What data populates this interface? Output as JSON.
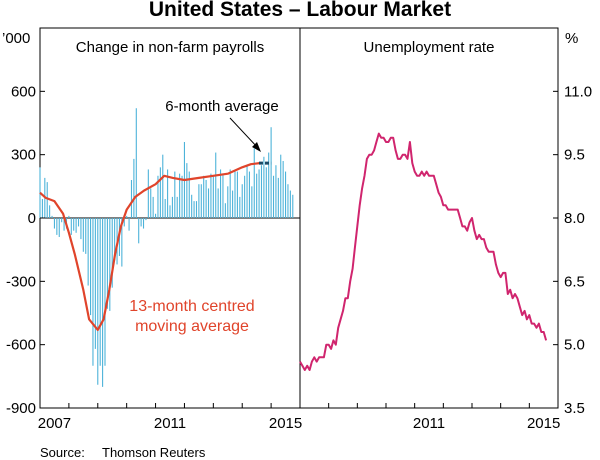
{
  "title": "United States – Labour Market",
  "source_label": "Source:",
  "source_value": "Thomson Reuters",
  "chart_data": [
    {
      "type": "bar",
      "title": "Change in non-farm payrolls",
      "ylabel": "’000",
      "ylim": [
        -900,
        900
      ],
      "yticks": [
        "600",
        "300",
        "0",
        "-300",
        "-600",
        "-900"
      ],
      "xticks": [
        "2007",
        "2011",
        "2015"
      ],
      "xlim": [
        2007.0,
        2016.0
      ],
      "annotations": {
        "six_month": "6-month average",
        "moving_avg": [
          "13-month centred",
          "moving average"
        ]
      },
      "colors": {
        "bars": "#4db3d9",
        "moving_average": "#e0442b",
        "six_month_marker": "#1a4a66"
      },
      "six_month_average": {
        "x": [
          2014.58,
          2015.0
        ],
        "value": 260
      },
      "bars": {
        "x_start": 2007.0,
        "step": 0.0833333,
        "values": [
          240,
          90,
          190,
          170,
          60,
          10,
          -50,
          -80,
          -90,
          -20,
          -60,
          -50,
          10,
          -80,
          -60,
          -70,
          -40,
          -100,
          -160,
          -170,
          -320,
          -460,
          -700,
          -620,
          -790,
          -700,
          -800,
          -700,
          -430,
          -440,
          -330,
          -200,
          -220,
          -180,
          -230,
          -40,
          10,
          -60,
          180,
          280,
          520,
          -120,
          -40,
          -50,
          -10,
          230,
          140,
          100,
          20,
          200,
          240,
          300,
          90,
          230,
          60,
          100,
          220,
          100,
          210,
          200,
          360,
          260,
          220,
          110,
          80,
          80,
          160,
          160,
          200,
          180,
          140,
          210,
          200,
          310,
          140,
          230,
          210,
          70,
          150,
          230,
          130,
          220,
          220,
          100,
          160,
          200,
          250,
          220,
          150,
          330,
          210,
          230,
          250,
          290,
          240,
          310,
          430,
          200,
          250,
          190,
          300,
          270,
          220,
          160,
          130,
          110
        ]
      },
      "moving_average": {
        "x": [
          2007.0,
          2007.2,
          2007.5,
          2007.8,
          2008.0,
          2008.2,
          2008.5,
          2008.7,
          2009.0,
          2009.2,
          2009.4,
          2009.6,
          2009.8,
          2010.0,
          2010.3,
          2010.6,
          2011.0,
          2011.3,
          2011.6,
          2012.0,
          2012.5,
          2013.0,
          2013.5,
          2014.0,
          2014.3,
          2014.6
        ],
        "values": [
          120,
          95,
          80,
          20,
          -70,
          -170,
          -340,
          -480,
          -530,
          -480,
          -340,
          -170,
          -40,
          40,
          100,
          130,
          160,
          200,
          190,
          180,
          190,
          200,
          210,
          240,
          255,
          260
        ]
      }
    },
    {
      "type": "line",
      "title": "Unemployment rate",
      "ylabel": "%",
      "ylim": [
        3.5,
        12.5
      ],
      "yticks": [
        "11.0",
        "9.5",
        "8.0",
        "6.5",
        "5.0",
        "3.5"
      ],
      "xticks": [
        "2011",
        "2015"
      ],
      "xlim": [
        2007.0,
        2016.0
      ],
      "colors": {
        "line": "#d0256e"
      },
      "series": [
        {
          "x_start": 2007.0,
          "step": 0.0833333,
          "values": [
            4.6,
            4.5,
            4.4,
            4.5,
            4.4,
            4.6,
            4.7,
            4.6,
            4.7,
            4.7,
            4.7,
            5.0,
            5.0,
            4.9,
            5.1,
            5.0,
            5.4,
            5.6,
            5.8,
            6.1,
            6.1,
            6.5,
            6.8,
            7.3,
            7.8,
            8.3,
            8.7,
            9.0,
            9.4,
            9.5,
            9.5,
            9.6,
            9.8,
            10.0,
            9.9,
            9.9,
            9.8,
            9.8,
            9.9,
            9.9,
            9.6,
            9.4,
            9.4,
            9.5,
            9.5,
            9.4,
            9.8,
            9.3,
            9.1,
            9.0,
            9.0,
            9.1,
            9.0,
            9.1,
            9.0,
            9.0,
            9.0,
            8.8,
            8.6,
            8.5,
            8.3,
            8.3,
            8.2,
            8.2,
            8.2,
            8.2,
            8.2,
            8.0,
            7.8,
            7.8,
            7.7,
            7.9,
            8.0,
            7.7,
            7.5,
            7.6,
            7.5,
            7.5,
            7.3,
            7.2,
            7.2,
            7.2,
            6.9,
            6.7,
            6.6,
            6.7,
            6.7,
            6.2,
            6.3,
            6.1,
            6.2,
            6.1,
            5.9,
            5.7,
            5.8,
            5.6,
            5.7,
            5.5,
            5.5,
            5.4,
            5.5,
            5.3,
            5.3,
            5.1
          ]
        }
      ]
    }
  ]
}
